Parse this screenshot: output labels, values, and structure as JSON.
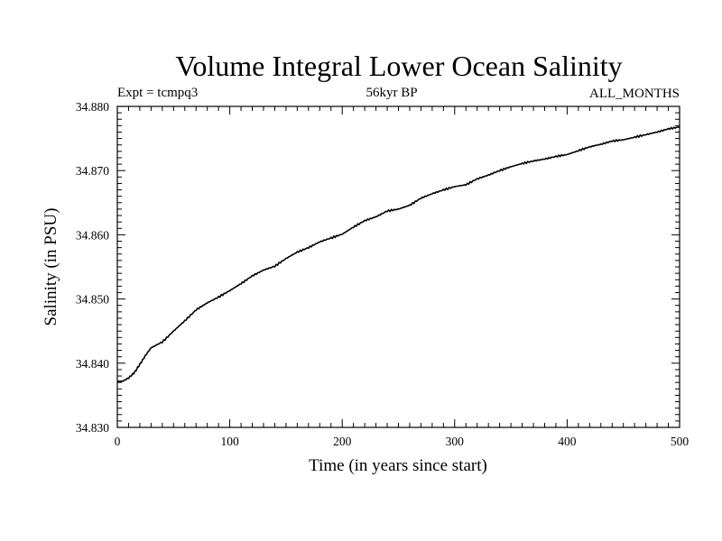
{
  "chart_data": {
    "type": "line",
    "title": "Volume Integral Lower Ocean Salinity",
    "subtitle_left": "Expt = tcmpq3",
    "subtitle_center": "56kyr BP",
    "subtitle_right": "ALL_MONTHS",
    "xlabel": "Time (in years since start)",
    "ylabel": "Salinity (in PSU)",
    "xlim": [
      0,
      500
    ],
    "ylim": [
      34.83,
      34.88
    ],
    "xticks": [
      0,
      100,
      200,
      300,
      400,
      500
    ],
    "xtick_labels": [
      "0",
      "100",
      "200",
      "300",
      "400",
      "500"
    ],
    "yticks": [
      34.83,
      34.84,
      34.85,
      34.86,
      34.87,
      34.88
    ],
    "ytick_labels": [
      "34.830",
      "34.840",
      "34.850",
      "34.860",
      "34.870",
      "34.880"
    ],
    "grid": false,
    "line_color": "#000000",
    "series": [
      {
        "x": [
          0,
          5,
          10,
          15,
          20,
          25,
          30,
          40,
          50,
          60,
          70,
          80,
          90,
          100,
          110,
          120,
          130,
          140,
          150,
          160,
          170,
          180,
          190,
          200,
          210,
          220,
          230,
          240,
          250,
          260,
          270,
          280,
          290,
          300,
          310,
          320,
          330,
          340,
          350,
          360,
          370,
          380,
          390,
          400,
          410,
          420,
          430,
          440,
          450,
          460,
          470,
          480,
          490,
          500
        ],
        "values": [
          34.8372,
          34.8372,
          34.8377,
          34.8385,
          34.8398,
          34.8412,
          34.8424,
          34.8433,
          34.845,
          34.8466,
          34.8483,
          34.8494,
          34.8503,
          34.8513,
          34.8524,
          34.8536,
          34.8545,
          34.8551,
          34.8563,
          34.8573,
          34.858,
          34.8589,
          34.8595,
          34.8601,
          34.8612,
          34.8622,
          34.8628,
          34.8637,
          34.864,
          34.8646,
          34.8657,
          34.8664,
          34.867,
          34.8675,
          34.8678,
          34.8687,
          34.8693,
          34.87,
          34.8706,
          34.8711,
          34.8715,
          34.8718,
          34.8722,
          34.8725,
          34.8731,
          34.8737,
          34.8741,
          34.8746,
          34.8748,
          34.8752,
          34.8756,
          34.876,
          34.8765,
          34.8768
        ]
      }
    ]
  }
}
